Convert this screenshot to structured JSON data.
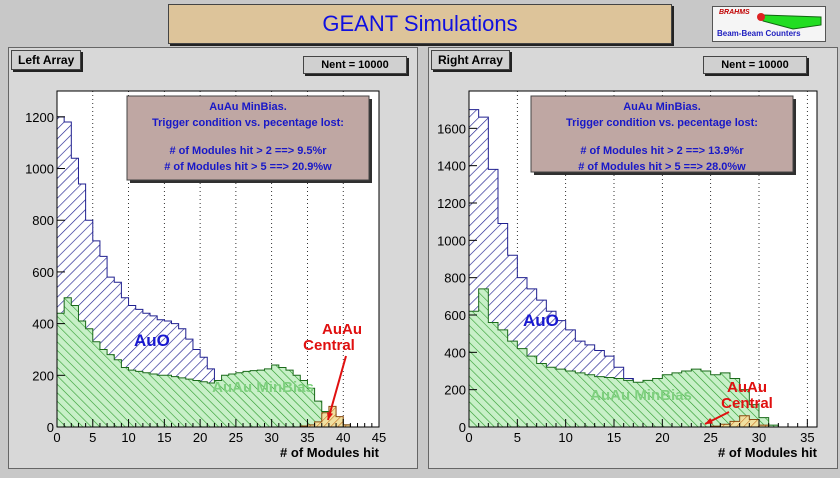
{
  "title": "GEANT Simulations",
  "logo": {
    "brand": "BRAHMS",
    "subtitle": "Beam-Beam Counters"
  },
  "chart_data": [
    {
      "type": "histogram",
      "panel_label": "Left Array",
      "stats_label": "Nent = 10000",
      "xlabel": "# of Modules hit",
      "xlim": [
        0,
        45
      ],
      "ylim": [
        0,
        1300
      ],
      "x_ticks": [
        0,
        5,
        10,
        15,
        20,
        25,
        30,
        35,
        40,
        45
      ],
      "y_ticks": [
        0,
        200,
        400,
        600,
        800,
        1000,
        1200
      ],
      "grid": "vertical dotted",
      "info_box": {
        "line1": "AuAu MinBias.",
        "line2": "Trigger condition vs. pecentage lost:",
        "line3": "# of Modules hit > 2 ==> 9.5%r",
        "line4": "# of Modules hit > 5 ==> 20.9%w"
      },
      "series": [
        {
          "name": "AuO",
          "color": "#2020a0",
          "fill": "hatched-blue",
          "values": [
            1200,
            1180,
            1040,
            940,
            800,
            720,
            660,
            580,
            560,
            500,
            470,
            455,
            440,
            430,
            415,
            410,
            400,
            380,
            340,
            300,
            270,
            225,
            180,
            130,
            80,
            40,
            12,
            4,
            1,
            0,
            0,
            0,
            0,
            0,
            0,
            0,
            0,
            0,
            0,
            0,
            0,
            0,
            0,
            0,
            0
          ]
        },
        {
          "name": "AuAu MinBias",
          "color": "#1e9e1e",
          "fill": "hatched-green",
          "values": [
            440,
            500,
            470,
            410,
            380,
            330,
            300,
            280,
            260,
            230,
            220,
            215,
            210,
            205,
            200,
            200,
            195,
            190,
            185,
            180,
            175,
            170,
            180,
            200,
            205,
            210,
            215,
            218,
            220,
            225,
            240,
            230,
            220,
            200,
            180,
            150,
            100,
            60,
            50,
            30,
            8,
            0,
            0,
            0,
            0
          ]
        },
        {
          "name": "AuAu\nCentral",
          "color": "#cc0000",
          "fill": "hatched-orange",
          "values": [
            0,
            0,
            0,
            0,
            0,
            0,
            0,
            0,
            0,
            0,
            0,
            0,
            0,
            0,
            0,
            0,
            0,
            0,
            0,
            0,
            0,
            0,
            0,
            0,
            0,
            0,
            0,
            0,
            0,
            0,
            0,
            0,
            0,
            0,
            4,
            8,
            20,
            55,
            80,
            40,
            8,
            0,
            0,
            0,
            0
          ]
        }
      ],
      "labels": {
        "auo": "AuO",
        "minbias": "AuAu MinBias",
        "central1": "AuAu",
        "central2": "Central"
      }
    },
    {
      "type": "histogram",
      "panel_label": "Right Array",
      "stats_label": "Nent = 10000",
      "xlabel": "# of Modules hit",
      "xlim": [
        0,
        36
      ],
      "ylim": [
        0,
        1800
      ],
      "x_ticks": [
        0,
        5,
        10,
        15,
        20,
        25,
        30,
        35
      ],
      "y_ticks": [
        0,
        200,
        400,
        600,
        800,
        1000,
        1200,
        1400,
        1600
      ],
      "grid": "vertical dotted",
      "info_box": {
        "line1": "AuAu MinBias.",
        "line2": "Trigger condition vs. pecentage lost:",
        "line3": "# of Modules hit > 2 ==> 13.9%r",
        "line4": "# of Modules hit > 5 ==> 28.0%w"
      },
      "series": [
        {
          "name": "AuO",
          "color": "#2020a0",
          "fill": "hatched-blue",
          "values": [
            1700,
            1660,
            1380,
            1090,
            920,
            800,
            740,
            680,
            620,
            570,
            520,
            460,
            440,
            410,
            380,
            320,
            260,
            200,
            120,
            60,
            20,
            6,
            2,
            0,
            0,
            0,
            0,
            0,
            0,
            0,
            0,
            0,
            0,
            0,
            0,
            0
          ]
        },
        {
          "name": "AuAu MinBias",
          "color": "#1e9e1e",
          "fill": "hatched-green",
          "values": [
            620,
            740,
            560,
            520,
            460,
            420,
            380,
            340,
            320,
            310,
            300,
            290,
            280,
            270,
            265,
            260,
            250,
            240,
            250,
            260,
            280,
            290,
            300,
            310,
            300,
            280,
            290,
            260,
            200,
            120,
            50,
            10,
            0,
            0,
            0,
            0
          ]
        },
        {
          "name": "AuAu\nCentral",
          "color": "#cc0000",
          "fill": "hatched-orange",
          "values": [
            0,
            0,
            0,
            0,
            0,
            0,
            0,
            0,
            0,
            0,
            0,
            0,
            0,
            0,
            0,
            0,
            0,
            0,
            0,
            0,
            0,
            0,
            0,
            0,
            0,
            5,
            15,
            30,
            60,
            40,
            10,
            0,
            0,
            0,
            0,
            0
          ]
        }
      ],
      "labels": {
        "auo": "AuO",
        "minbias": "AuAu MinBias",
        "central1": "AuAu",
        "central2": "Central"
      }
    }
  ]
}
